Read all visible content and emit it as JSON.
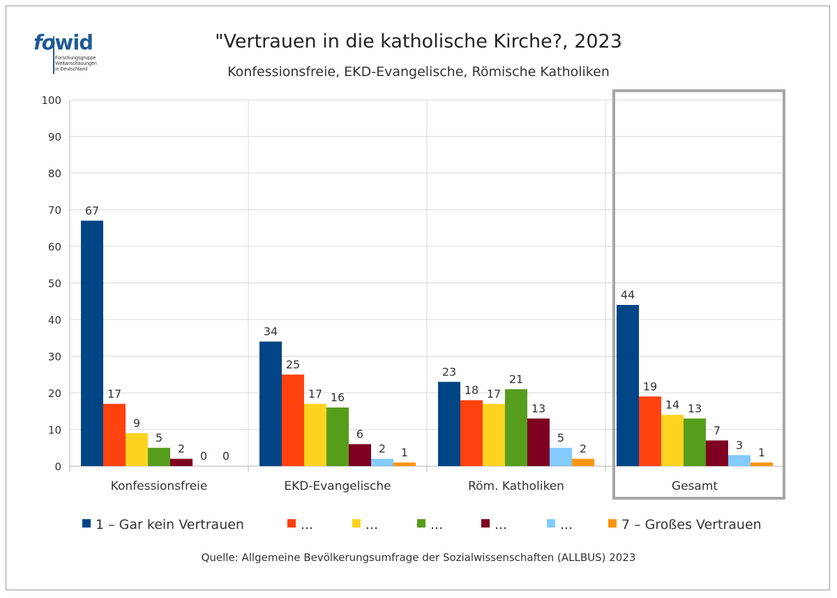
{
  "logo": {
    "text_fo": "fo",
    "text_wid": "wid",
    "subtitle_lines": [
      "Forschungsgruppe",
      "Weltanschauungen",
      "in Deutschland"
    ]
  },
  "title": "\"Vertrauen in die katholische Kirche?, 2023",
  "subtitle": "Konfessionsfreie, EKD-Evangelische, Römische Katholiken",
  "source": "Quelle: Allgemeine Bevölkerungsumfrage der Sozialwissenschaften (ALLBUS) 2023",
  "chart_data": {
    "type": "bar",
    "categories": [
      "Konfessionsfreie",
      "EKD-Evangelische",
      "Röm. Katholiken",
      "Gesamt"
    ],
    "ylim": [
      0,
      100
    ],
    "yticks": [
      0,
      10,
      20,
      30,
      40,
      50,
      60,
      70,
      80,
      90,
      100
    ],
    "grid": true,
    "legend_position": "bottom",
    "highlighted_category": "Gesamt",
    "highlight_color": "#a6a6a6",
    "series": [
      {
        "name": "1 – Gar kein Vertrauen",
        "color": "#004586",
        "values": [
          67,
          34,
          23,
          44
        ]
      },
      {
        "name": "...",
        "color": "#ff420e",
        "values": [
          17,
          25,
          18,
          19
        ]
      },
      {
        "name": "...",
        "color": "#ffd320",
        "values": [
          9,
          17,
          17,
          14
        ]
      },
      {
        "name": "...",
        "color": "#579d1c",
        "values": [
          5,
          16,
          21,
          13
        ]
      },
      {
        "name": "...",
        "color": "#7e0021",
        "values": [
          2,
          6,
          13,
          7
        ]
      },
      {
        "name": "...",
        "color": "#83caff",
        "values": [
          0,
          2,
          5,
          3
        ]
      },
      {
        "name": "7 – Großes Vertrauen",
        "color": "#ff950e",
        "values": [
          0,
          1,
          2,
          1
        ]
      }
    ]
  }
}
